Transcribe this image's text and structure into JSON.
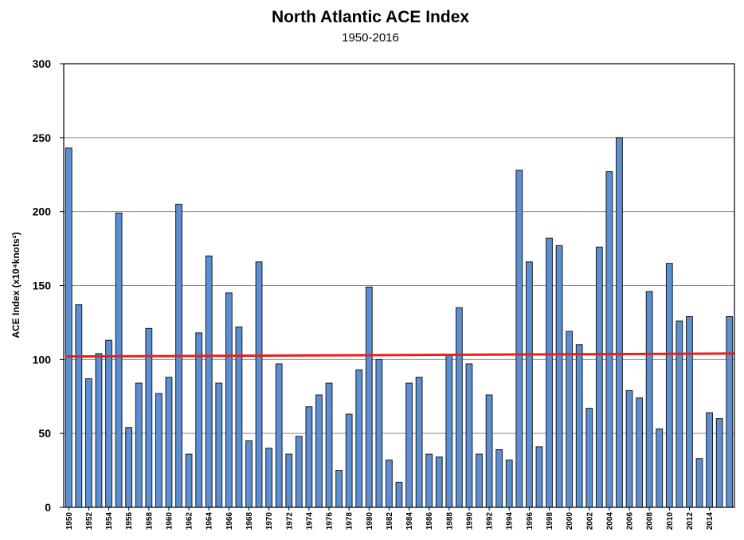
{
  "chart_data": {
    "type": "bar",
    "title": "North Atlantic ACE Index",
    "subtitle": "1950-2016",
    "ylabel": "ACE Index (x10⁴knots²)",
    "xlabel": "",
    "ylim": [
      0,
      300
    ],
    "yticks": [
      "0",
      "50",
      "100",
      "150",
      "200",
      "250",
      "300"
    ],
    "grid": true,
    "legend": "none",
    "bar_color": "#5b8fd4",
    "trend_color": "#e8201a",
    "x_tick_labels": [
      "1950",
      "1952",
      "1954",
      "1956",
      "1958",
      "1960",
      "1962",
      "1964",
      "1966",
      "1968",
      "1970",
      "1972",
      "1974",
      "1976",
      "1978",
      "1980",
      "1982",
      "1984",
      "1986",
      "1988",
      "1990",
      "1992",
      "1994",
      "1996",
      "1998",
      "2000",
      "2002",
      "2004",
      "2006",
      "2008",
      "2010",
      "2012",
      "2014"
    ],
    "categories": [
      "1950",
      "1951",
      "1952",
      "1953",
      "1954",
      "1955",
      "1956",
      "1957",
      "1958",
      "1959",
      "1960",
      "1961",
      "1962",
      "1963",
      "1964",
      "1965",
      "1966",
      "1967",
      "1968",
      "1969",
      "1970",
      "1971",
      "1972",
      "1973",
      "1974",
      "1975",
      "1976",
      "1977",
      "1978",
      "1979",
      "1980",
      "1981",
      "1982",
      "1983",
      "1984",
      "1985",
      "1986",
      "1987",
      "1988",
      "1989",
      "1990",
      "1991",
      "1992",
      "1993",
      "1994",
      "1995",
      "1996",
      "1997",
      "1998",
      "1999",
      "2000",
      "2001",
      "2002",
      "2003",
      "2004",
      "2005",
      "2006",
      "2007",
      "2008",
      "2009",
      "2010",
      "2011",
      "2012",
      "2013",
      "2014",
      "2015",
      "2016"
    ],
    "values": [
      243,
      137,
      87,
      104,
      113,
      199,
      54,
      84,
      121,
      77,
      88,
      205,
      36,
      118,
      170,
      84,
      145,
      122,
      45,
      166,
      40,
      97,
      36,
      48,
      68,
      76,
      84,
      25,
      63,
      93,
      149,
      100,
      32,
      17,
      84,
      88,
      36,
      34,
      103,
      135,
      97,
      36,
      76,
      39,
      32,
      228,
      166,
      41,
      182,
      177,
      119,
      110,
      67,
      176,
      227,
      250,
      79,
      74,
      146,
      53,
      165,
      126,
      129,
      33,
      64,
      60,
      129
    ],
    "trend": {
      "start": 102,
      "end": 104
    }
  }
}
